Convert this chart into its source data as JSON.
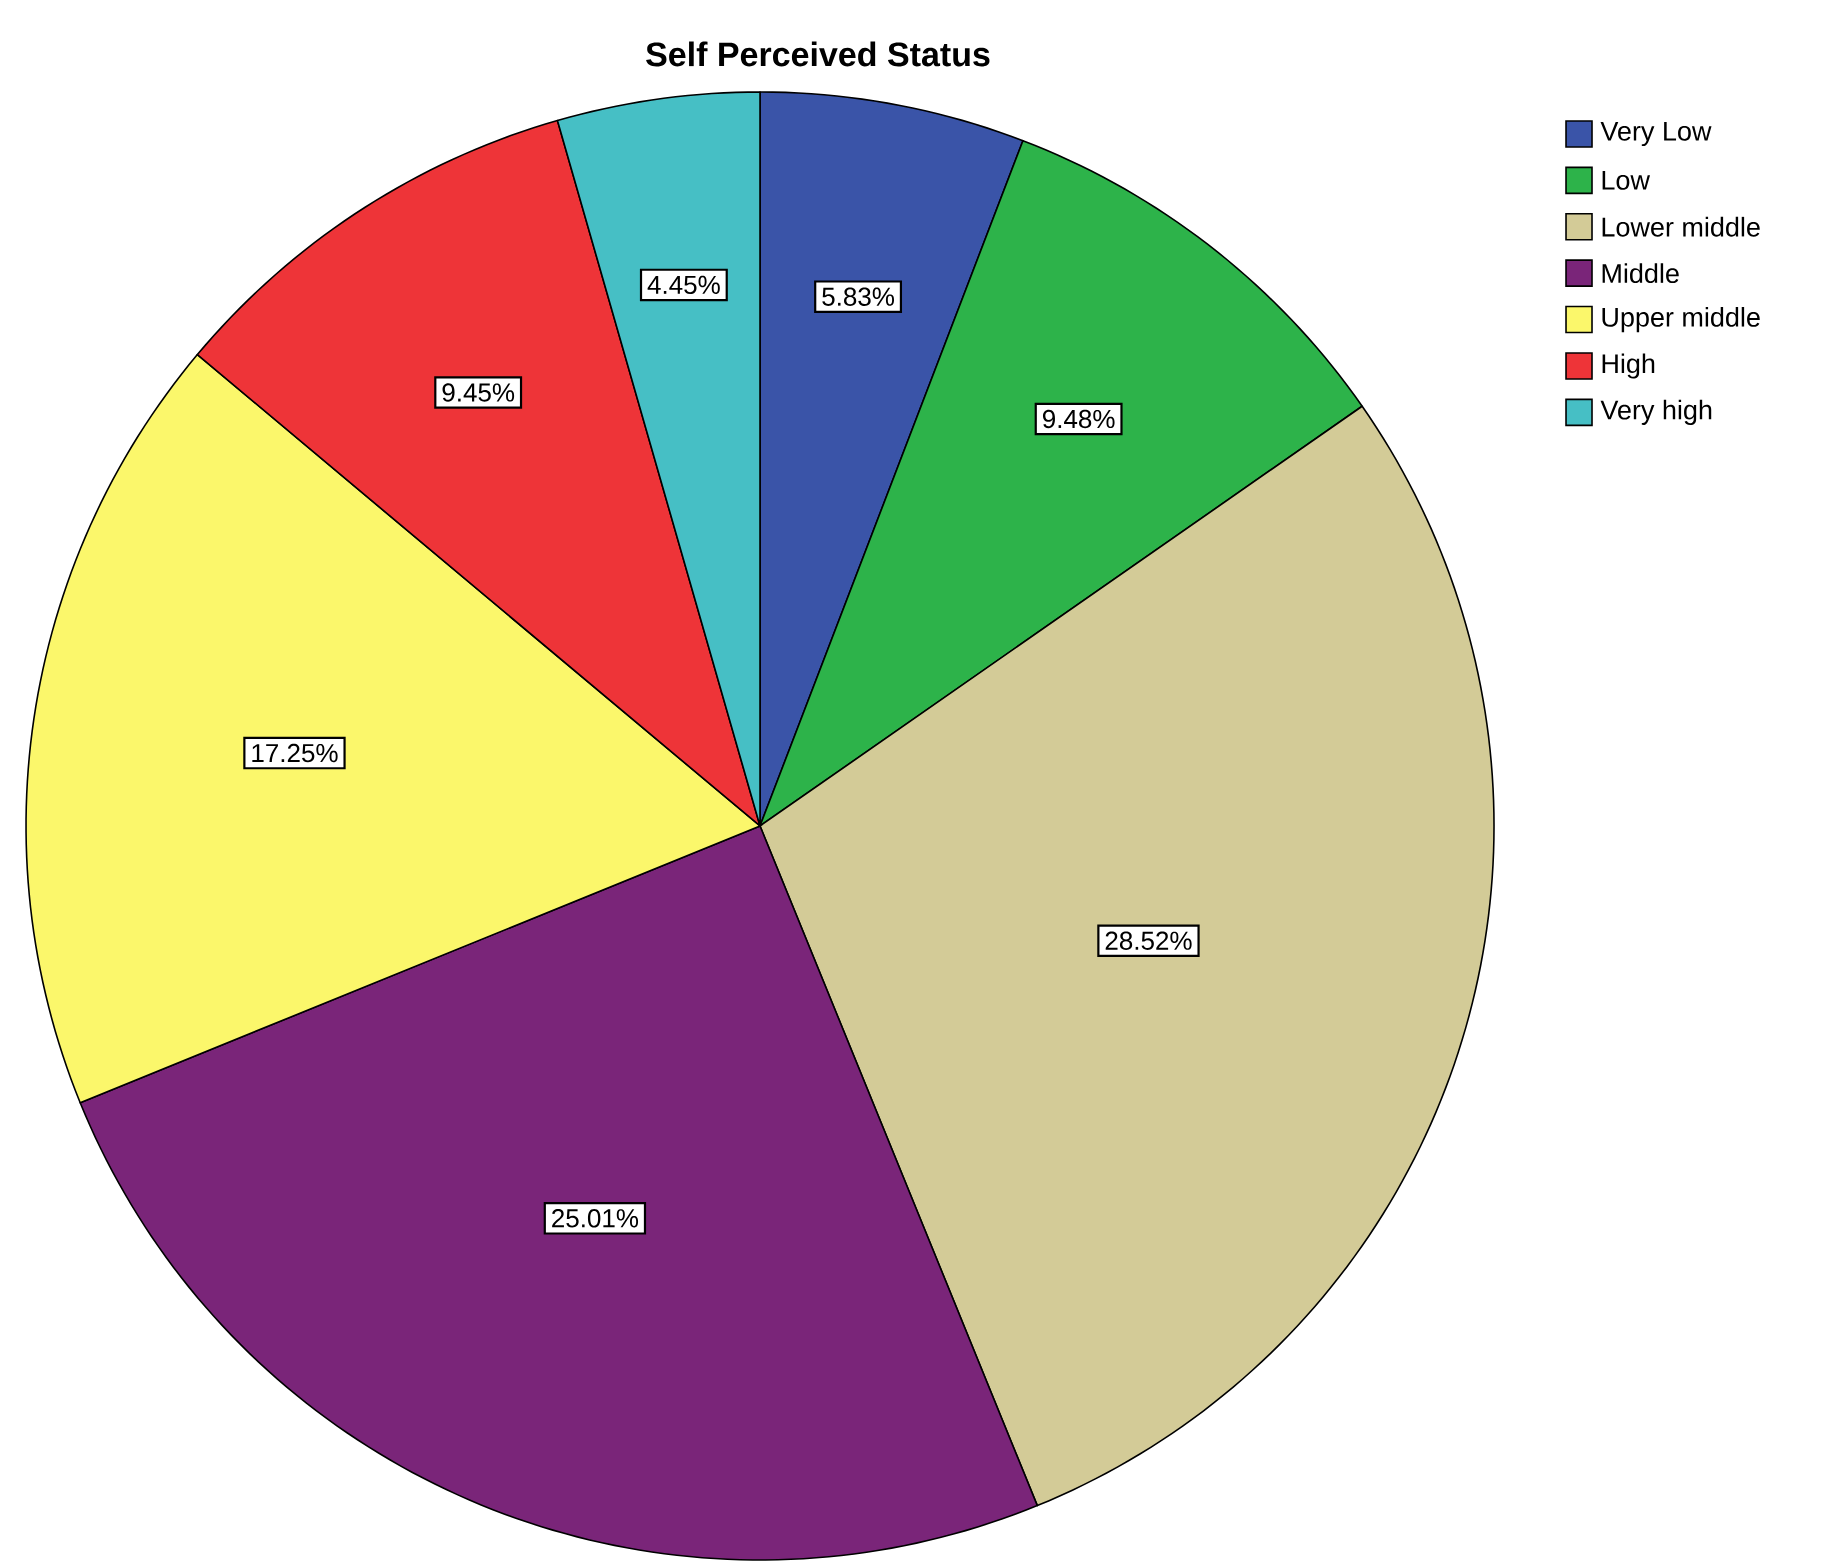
{
  "chart_data": {
    "type": "pie",
    "title": "Self Perceived Status",
    "categories": [
      "Very Low",
      "Low",
      "Lower middle",
      "Middle",
      "Upper middle",
      "High",
      "Very high"
    ],
    "values": [
      5.83,
      9.48,
      28.52,
      25.01,
      17.25,
      9.45,
      4.45
    ],
    "value_labels": [
      "5.83%",
      "9.48%",
      "28.52%",
      "25.01%",
      "17.25%",
      "9.45%",
      "4.45%"
    ],
    "colors": [
      "#3a54a8",
      "#2db34a",
      "#d3cb97",
      "#7a2579",
      "#fbf76b",
      "#ee3438",
      "#46bfc5"
    ],
    "legend": "top right"
  }
}
